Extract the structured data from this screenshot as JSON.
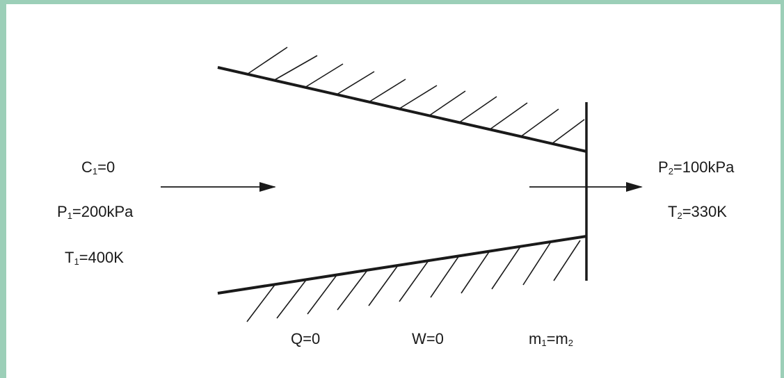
{
  "colors": {
    "frame": "#9ccfb8",
    "ink": "#1a1a1a",
    "background": "#ffffff"
  },
  "inlet": {
    "velocity": {
      "symbol": "C",
      "sub": "1",
      "value": "=0"
    },
    "pressure": {
      "symbol": "P",
      "sub": "1",
      "value": "=200kPa"
    },
    "temperature": {
      "symbol": "T",
      "sub": "1",
      "value": "=400K"
    }
  },
  "outlet": {
    "pressure": {
      "symbol": "P",
      "sub": "2",
      "value": "=100kPa"
    },
    "temperature": {
      "symbol": "T",
      "sub": "2",
      "value": "=330K"
    }
  },
  "conditions": {
    "heat": "Q=0",
    "work": "W=0",
    "mass": {
      "a": "m",
      "a_sub": "1",
      "eq": "=",
      "b": "m",
      "b_sub": "2"
    }
  }
}
